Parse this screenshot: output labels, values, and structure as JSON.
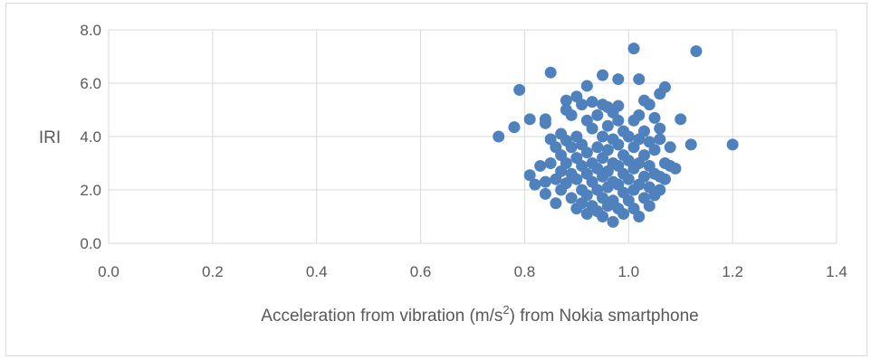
{
  "chart_data": {
    "type": "scatter",
    "title": "",
    "xlabel_prefix": "Acceleration from vibration (m/s",
    "xlabel_sup": "2",
    "xlabel_suffix": ") from Nokia smartphone",
    "ylabel": "IRI",
    "xlim": [
      0,
      1.4
    ],
    "ylim": [
      0,
      8
    ],
    "x_ticks": [
      "0.0",
      "0.2",
      "0.4",
      "0.6",
      "0.8",
      "1.0",
      "1.2",
      "1.4"
    ],
    "y_ticks": [
      "0.0",
      "2.0",
      "4.0",
      "6.0",
      "8.0"
    ],
    "grid": true,
    "legend": "none",
    "marker_color": "#4f81bd",
    "series": [
      {
        "points": [
          [
            0.75,
            4.0
          ],
          [
            0.78,
            4.35
          ],
          [
            0.79,
            5.75
          ],
          [
            0.81,
            4.65
          ],
          [
            0.81,
            2.55
          ],
          [
            0.82,
            2.2
          ],
          [
            0.83,
            2.9
          ],
          [
            0.84,
            2.3
          ],
          [
            0.84,
            1.85
          ],
          [
            0.84,
            4.65
          ],
          [
            0.84,
            4.5
          ],
          [
            0.85,
            3.9
          ],
          [
            0.85,
            6.4
          ],
          [
            0.85,
            3.0
          ],
          [
            0.86,
            3.6
          ],
          [
            0.86,
            2.4
          ],
          [
            0.86,
            1.5
          ],
          [
            0.87,
            4.1
          ],
          [
            0.87,
            3.3
          ],
          [
            0.87,
            2.7
          ],
          [
            0.87,
            2.0
          ],
          [
            0.88,
            5.35
          ],
          [
            0.88,
            5.0
          ],
          [
            0.88,
            3.85
          ],
          [
            0.88,
            3.0
          ],
          [
            0.88,
            2.25
          ],
          [
            0.89,
            4.8
          ],
          [
            0.89,
            3.6
          ],
          [
            0.89,
            2.6
          ],
          [
            0.89,
            1.7
          ],
          [
            0.9,
            5.5
          ],
          [
            0.9,
            4.0
          ],
          [
            0.9,
            3.2
          ],
          [
            0.9,
            2.4
          ],
          [
            0.9,
            1.3
          ],
          [
            0.91,
            5.2
          ],
          [
            0.91,
            3.7
          ],
          [
            0.91,
            2.9
          ],
          [
            0.91,
            2.0
          ],
          [
            0.91,
            1.5
          ],
          [
            0.92,
            5.9
          ],
          [
            0.92,
            4.6
          ],
          [
            0.92,
            3.4
          ],
          [
            0.92,
            2.6
          ],
          [
            0.92,
            1.8
          ],
          [
            0.92,
            1.1
          ],
          [
            0.93,
            5.3
          ],
          [
            0.93,
            4.3
          ],
          [
            0.93,
            3.0
          ],
          [
            0.93,
            2.3
          ],
          [
            0.93,
            1.4
          ],
          [
            0.94,
            4.8
          ],
          [
            0.94,
            3.6
          ],
          [
            0.94,
            2.8
          ],
          [
            0.94,
            2.0
          ],
          [
            0.94,
            1.2
          ],
          [
            0.95,
            6.3
          ],
          [
            0.95,
            5.2
          ],
          [
            0.95,
            4.0
          ],
          [
            0.95,
            3.2
          ],
          [
            0.95,
            2.5
          ],
          [
            0.95,
            1.7
          ],
          [
            0.95,
            1.0
          ],
          [
            0.96,
            5.1
          ],
          [
            0.96,
            4.4
          ],
          [
            0.96,
            3.5
          ],
          [
            0.96,
            2.7
          ],
          [
            0.96,
            2.1
          ],
          [
            0.96,
            1.4
          ],
          [
            0.97,
            4.9
          ],
          [
            0.97,
            3.9
          ],
          [
            0.97,
            3.0
          ],
          [
            0.97,
            2.3
          ],
          [
            0.97,
            1.6
          ],
          [
            0.97,
            0.8
          ],
          [
            0.98,
            6.15
          ],
          [
            0.98,
            5.15
          ],
          [
            0.98,
            4.6
          ],
          [
            0.98,
            3.7
          ],
          [
            0.98,
            2.9
          ],
          [
            0.98,
            2.2
          ],
          [
            0.98,
            1.3
          ],
          [
            0.99,
            4.2
          ],
          [
            0.99,
            3.3
          ],
          [
            0.99,
            2.6
          ],
          [
            0.99,
            1.9
          ],
          [
            0.99,
            1.1
          ],
          [
            1.0,
            4.0
          ],
          [
            1.0,
            3.1
          ],
          [
            1.0,
            2.4
          ],
          [
            1.0,
            1.6
          ],
          [
            1.01,
            7.3
          ],
          [
            1.01,
            4.6
          ],
          [
            1.01,
            3.6
          ],
          [
            1.01,
            2.8
          ],
          [
            1.01,
            2.0
          ],
          [
            1.01,
            1.3
          ],
          [
            1.02,
            6.15
          ],
          [
            1.02,
            4.8
          ],
          [
            1.02,
            3.9
          ],
          [
            1.02,
            3.0
          ],
          [
            1.02,
            2.2
          ],
          [
            1.02,
            1.0
          ],
          [
            1.03,
            5.35
          ],
          [
            1.03,
            4.2
          ],
          [
            1.03,
            3.3
          ],
          [
            1.03,
            2.5
          ],
          [
            1.03,
            1.7
          ],
          [
            1.04,
            5.2
          ],
          [
            1.04,
            3.8
          ],
          [
            1.04,
            2.9
          ],
          [
            1.04,
            2.1
          ],
          [
            1.04,
            1.4
          ],
          [
            1.05,
            4.7
          ],
          [
            1.05,
            3.5
          ],
          [
            1.05,
            2.6
          ],
          [
            1.05,
            1.8
          ],
          [
            1.06,
            5.6
          ],
          [
            1.06,
            4.3
          ],
          [
            1.06,
            3.9
          ],
          [
            1.06,
            2.5
          ],
          [
            1.06,
            2.0
          ],
          [
            1.07,
            5.85
          ],
          [
            1.07,
            3.0
          ],
          [
            1.07,
            2.4
          ],
          [
            1.08,
            3.6
          ],
          [
            1.08,
            2.9
          ],
          [
            1.09,
            2.8
          ],
          [
            1.1,
            4.65
          ],
          [
            1.12,
            3.7
          ],
          [
            1.13,
            7.2
          ],
          [
            1.2,
            3.7
          ]
        ]
      }
    ]
  }
}
